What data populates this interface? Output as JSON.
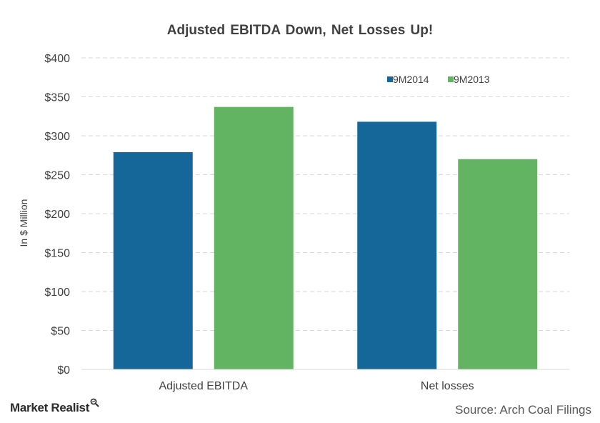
{
  "site": {
    "brand": "Market Realist",
    "brand_icon": "magnifier-icon",
    "source": "Source: Arch Coal Filings"
  },
  "chart_data": {
    "type": "bar",
    "title": "Adjusted  EBITDA Down, Net Losses  Up!",
    "xlabel": "",
    "ylabel": "In $ Million",
    "categories": [
      "Adjusted EBITDA",
      "Net losses"
    ],
    "series": [
      {
        "name": "9M2014",
        "color": "#156699",
        "values": [
          279,
          318
        ]
      },
      {
        "name": "9M2013",
        "color": "#62b463",
        "values": [
          337,
          270
        ]
      }
    ],
    "ylim": [
      0,
      400
    ],
    "yticks": [
      0,
      50,
      100,
      150,
      200,
      250,
      300,
      350,
      400
    ],
    "ytick_labels": [
      "$0",
      "$50",
      "$100",
      "$150",
      "$200",
      "$250",
      "$300",
      "$350",
      "$400"
    ],
    "grid": true,
    "legend_position": "top-right"
  }
}
